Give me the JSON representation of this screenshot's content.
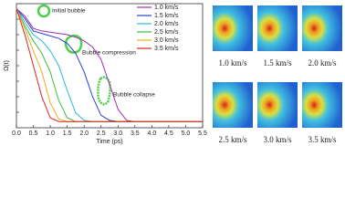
{
  "chart_data": {
    "type": "line",
    "x_label": "Time (ps)",
    "y_label": "Ω(t)",
    "x": [
      0,
      0.25,
      0.5,
      0.75,
      1,
      1.25,
      1.5,
      1.75,
      2,
      2.25,
      2.5,
      2.75,
      3,
      3.25,
      3.5,
      4,
      4.5,
      5,
      5.5
    ],
    "xlim": [
      0,
      5.5
    ],
    "xticks": [
      {
        "value": 0,
        "label": "0.0"
      },
      0.5,
      {
        "value": 1,
        "label": "1.0"
      },
      1.5,
      {
        "value": 2,
        "label": "2.0"
      },
      2.5,
      {
        "value": 3,
        "label": "3.0"
      },
      3.5,
      {
        "value": 4,
        "label": "4.0"
      },
      4.5,
      {
        "value": 5,
        "label": "5.0"
      },
      5.5
    ],
    "ylim": [
      0,
      1
    ],
    "legend": "upper right",
    "annotations": [
      "Initial bubble",
      "Bubble compression",
      "Bubble collapse"
    ],
    "series": [
      {
        "name": "1.0 km/s",
        "color": "#9b2fae",
        "values": [
          0.96,
          0.9,
          0.8,
          0.78,
          0.77,
          0.76,
          0.75,
          0.73,
          0.7,
          0.65,
          0.55,
          0.35,
          0.15,
          0.06,
          0.05,
          0.05,
          0.05,
          0.05,
          0.05
        ]
      },
      {
        "name": "1.5 km/s",
        "color": "#2b3fd6",
        "values": [
          0.96,
          0.88,
          0.78,
          0.76,
          0.74,
          0.72,
          0.68,
          0.6,
          0.45,
          0.25,
          0.1,
          0.06,
          0.05,
          0.05,
          0.05,
          0.05,
          0.05,
          0.05,
          0.05
        ]
      },
      {
        "name": "2.0 km/s",
        "color": "#29b8e0",
        "values": [
          0.96,
          0.85,
          0.75,
          0.7,
          0.62,
          0.5,
          0.3,
          0.12,
          0.06,
          0.05,
          0.05,
          0.05,
          0.05,
          0.05,
          0.05,
          0.05,
          0.05,
          0.05,
          0.05
        ]
      },
      {
        "name": "2.5 km/s",
        "color": "#3cbf3c",
        "values": [
          0.96,
          0.82,
          0.7,
          0.6,
          0.45,
          0.22,
          0.08,
          0.05,
          0.05,
          0.05,
          0.05,
          0.05,
          0.05,
          0.05,
          0.05,
          0.05,
          0.05,
          0.05,
          0.05
        ]
      },
      {
        "name": "3.0 km/s",
        "color": "#e8b020",
        "values": [
          0.96,
          0.8,
          0.62,
          0.45,
          0.2,
          0.07,
          0.05,
          0.05,
          0.05,
          0.05,
          0.05,
          0.05,
          0.05,
          0.05,
          0.05,
          0.05,
          0.05,
          0.05,
          0.05
        ]
      },
      {
        "name": "3.5 km/s",
        "color": "#e02020",
        "values": [
          0.96,
          0.75,
          0.5,
          0.25,
          0.08,
          0.05,
          0.05,
          0.05,
          0.05,
          0.05,
          0.05,
          0.05,
          0.05,
          0.05,
          0.05,
          0.05,
          0.05,
          0.05,
          0.05
        ]
      }
    ]
  },
  "panels": [
    {
      "caption": "1.0 km/s"
    },
    {
      "caption": "1.5 km/s"
    },
    {
      "caption": "2.0 km/s"
    },
    {
      "caption": "2.5 km/s"
    },
    {
      "caption": "3.0 km/s"
    },
    {
      "caption": "3.5 km/s"
    }
  ]
}
